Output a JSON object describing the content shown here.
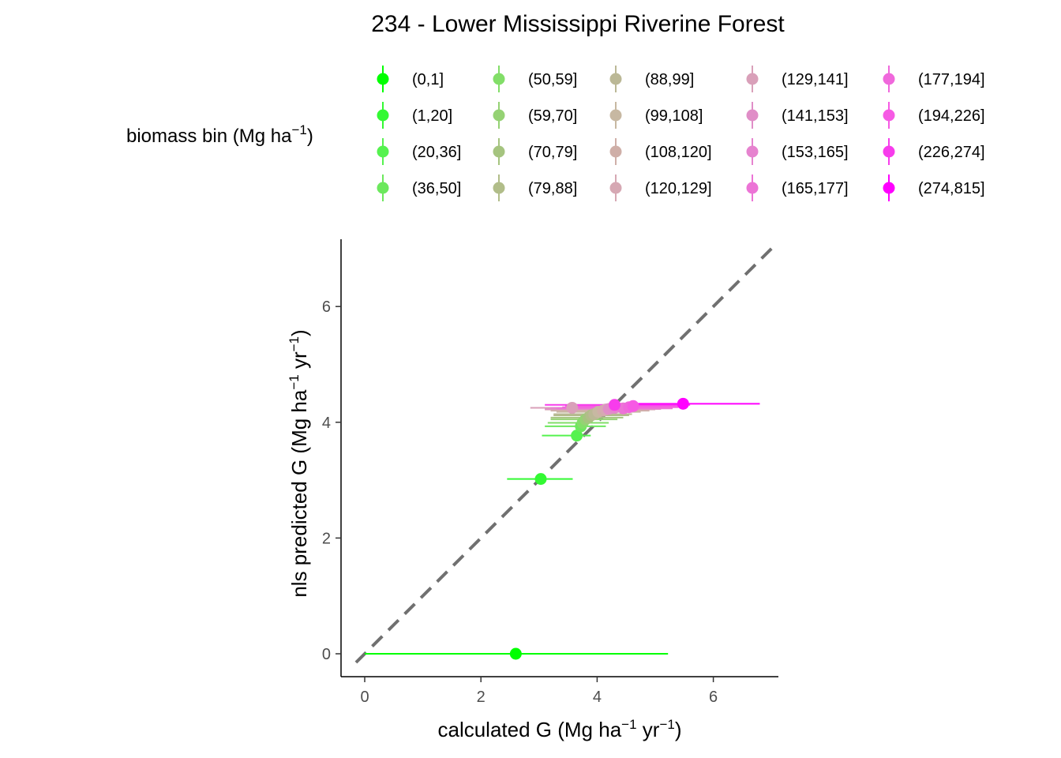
{
  "chart_data": {
    "type": "scatter",
    "title": "234 - Lower Mississippi Riverine Forest",
    "xlabel": {
      "text": "calculated G (Mg ha",
      "sup1": "−1",
      "mid": " yr",
      "sup2": "−1",
      "end": ")"
    },
    "ylabel": {
      "text": "nls predicted G (Mg ha",
      "sup1": "−1",
      "mid": " yr",
      "sup2": "−1",
      "end": ")"
    },
    "xlim": [
      -0.4,
      7.2
    ],
    "ylim": [
      -0.4,
      7.2
    ],
    "x_ticks": [
      0,
      2,
      4,
      6
    ],
    "y_ticks": [
      0,
      2,
      4,
      6
    ],
    "grid": false,
    "reference_line": {
      "type": "1:1",
      "style": "dashed",
      "color": "#707070"
    },
    "legend": {
      "title": {
        "text": "biomass bin (Mg ha",
        "sup": "−1",
        "end": ")"
      },
      "placement": "top",
      "columns": 5
    },
    "series": [
      {
        "name": "(0,1]",
        "color": "#00FF00",
        "x": 2.6,
        "y": 0.0,
        "xmin": 0.0,
        "xmax": 5.22
      },
      {
        "name": "(1,20]",
        "color": "#33F933",
        "x": 3.03,
        "y": 3.02,
        "xmin": 2.45,
        "xmax": 3.58
      },
      {
        "name": "(20,36]",
        "color": "#55F24F",
        "x": 3.65,
        "y": 3.77,
        "xmin": 3.05,
        "xmax": 3.89
      },
      {
        "name": "(36,50]",
        "color": "#6CE85D",
        "x": 3.72,
        "y": 3.93,
        "xmin": 3.1,
        "xmax": 4.15
      },
      {
        "name": "(50,59]",
        "color": "#82DE68",
        "x": 3.75,
        "y": 3.99,
        "xmin": 3.15,
        "xmax": 4.2
      },
      {
        "name": "(59,70]",
        "color": "#95D274",
        "x": 3.8,
        "y": 4.05,
        "xmin": 3.2,
        "xmax": 4.35
      },
      {
        "name": "(70,79]",
        "color": "#A5C47F",
        "x": 3.85,
        "y": 4.08,
        "xmin": 3.2,
        "xmax": 4.45
      },
      {
        "name": "(79,88]",
        "color": "#B1BD89",
        "x": 3.9,
        "y": 4.12,
        "xmin": 3.25,
        "xmax": 4.55
      },
      {
        "name": "(88,99]",
        "color": "#BBB896",
        "x": 3.95,
        "y": 4.14,
        "xmin": 3.25,
        "xmax": 4.6
      },
      {
        "name": "(99,108]",
        "color": "#C7B8A2",
        "x": 4.02,
        "y": 4.18,
        "xmin": 3.3,
        "xmax": 4.75
      },
      {
        "name": "(108,120]",
        "color": "#CFAFA8",
        "x": 4.1,
        "y": 4.2,
        "xmin": 3.2,
        "xmax": 4.9
      },
      {
        "name": "(120,129]",
        "color": "#D6A8B3",
        "x": 4.15,
        "y": 4.22,
        "xmin": 3.1,
        "xmax": 5.0
      },
      {
        "name": "(129,141]",
        "color": "#D9A0B9",
        "x": 3.57,
        "y": 4.25,
        "xmin": 2.85,
        "xmax": 4.25
      },
      {
        "name": "(141,153]",
        "color": "#E08EC7",
        "x": 4.2,
        "y": 4.23,
        "xmin": 3.1,
        "xmax": 5.1
      },
      {
        "name": "(153,165]",
        "color": "#E683CF",
        "x": 4.3,
        "y": 4.25,
        "xmin": 3.2,
        "xmax": 5.2
      },
      {
        "name": "(165,177]",
        "color": "#EC74D6",
        "x": 4.45,
        "y": 4.24,
        "xmin": 3.3,
        "xmax": 5.3
      },
      {
        "name": "(177,194]",
        "color": "#F068DC",
        "x": 4.55,
        "y": 4.26,
        "xmin": 3.4,
        "xmax": 5.4
      },
      {
        "name": "(194,226]",
        "color": "#F65AE4",
        "x": 4.62,
        "y": 4.28,
        "xmin": 3.45,
        "xmax": 5.5
      },
      {
        "name": "(226,274]",
        "color": "#F73CEC",
        "x": 4.3,
        "y": 4.3,
        "xmin": 3.1,
        "xmax": 5.6
      },
      {
        "name": "(274,815]",
        "color": "#FF00FF",
        "x": 5.48,
        "y": 4.32,
        "xmin": 4.2,
        "xmax": 6.8
      }
    ]
  }
}
